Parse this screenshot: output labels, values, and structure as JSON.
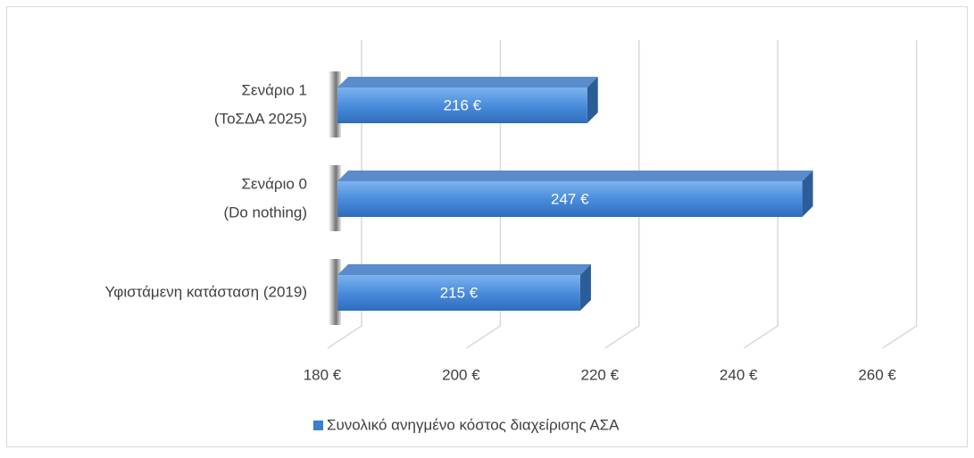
{
  "chart_data": {
    "type": "bar3d-horizontal",
    "categories": [
      [
        "Υφιστάμενη κατάσταση (2019)"
      ],
      [
        "Σενάριο 0",
        "(Do nothing)"
      ],
      [
        "Σενάριο 1",
        "(ΤοΣΔΑ 2025)"
      ]
    ],
    "series": [
      {
        "name": "Συνολικό ανηγμένο κόστος διαχείρισης ΑΣΑ",
        "color": "#3a7fd0",
        "values": [
          215,
          247,
          216
        ],
        "value_labels": [
          "215 €",
          "247 €",
          "216 €"
        ]
      }
    ],
    "xlim": [
      180,
      260
    ],
    "xticks": [
      {
        "value": 180,
        "label": "180 €"
      },
      {
        "value": 200,
        "label": "200 €"
      },
      {
        "value": 220,
        "label": "220 €"
      },
      {
        "value": 240,
        "label": "240 €"
      },
      {
        "value": 260,
        "label": "260 €"
      }
    ],
    "grid": true,
    "legend": "bottom"
  }
}
